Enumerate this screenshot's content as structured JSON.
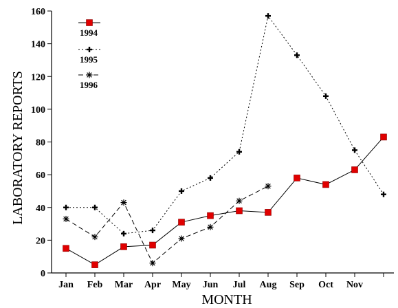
{
  "chart_data": {
    "type": "line",
    "title": "",
    "xlabel": "MONTH",
    "ylabel": "LABORATORY REPORTS",
    "categories": [
      "Jan",
      "Feb",
      "Mar",
      "Apr",
      "May",
      "Jun",
      "Jul",
      "Aug",
      "Sep",
      "Oct",
      "Nov",
      ""
    ],
    "ylim": [
      0,
      160
    ],
    "yticks": [
      0,
      20,
      40,
      60,
      80,
      100,
      120,
      140,
      160
    ],
    "grid": false,
    "legend_position": "top-left",
    "series": [
      {
        "name": "1994",
        "style": "solid",
        "marker": "square",
        "marker_color": "#e00000",
        "values": [
          15,
          5,
          16,
          17,
          31,
          35,
          38,
          37,
          58,
          54,
          63,
          83
        ]
      },
      {
        "name": "1995",
        "style": "dotted",
        "marker": "plus",
        "marker_color": "#000000",
        "values": [
          40,
          40,
          24,
          26,
          50,
          58,
          74,
          157,
          133,
          108,
          75,
          48
        ]
      },
      {
        "name": "1996",
        "style": "dashed",
        "marker": "asterisk",
        "marker_color": "#000000",
        "values": [
          33,
          22,
          43,
          6,
          21,
          28,
          44,
          53,
          null,
          null,
          null,
          null
        ]
      }
    ]
  }
}
